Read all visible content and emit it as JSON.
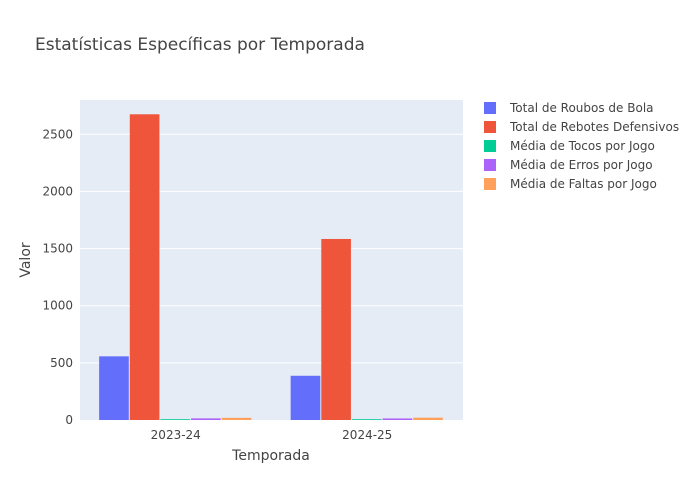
{
  "chart_data": {
    "type": "bar",
    "title": "Estatísticas Específicas por Temporada",
    "xlabel": "Temporada",
    "ylabel": "Valor",
    "categories": [
      "2023-24",
      "2024-25"
    ],
    "ylim": [
      0,
      2800
    ],
    "yticks": [
      0,
      500,
      1000,
      1500,
      2000,
      2500
    ],
    "grid": true,
    "legend_position": "right",
    "series": [
      {
        "name": "Total de Roubos de Bola",
        "color": "#636efa",
        "values": [
          557,
          387
        ]
      },
      {
        "name": "Total de Rebotes Defensivos",
        "color": "#ef553b",
        "values": [
          2675,
          1584
        ]
      },
      {
        "name": "Média de Tocos por Jogo",
        "color": "#00cc96",
        "values": [
          5.1,
          5.0
        ]
      },
      {
        "name": "Média de Erros por Jogo",
        "color": "#ab63fa",
        "values": [
          14.2,
          13.5
        ]
      },
      {
        "name": "Média de Faltas por Jogo",
        "color": "#ffa15a",
        "values": [
          18.9,
          20.3
        ]
      }
    ]
  }
}
